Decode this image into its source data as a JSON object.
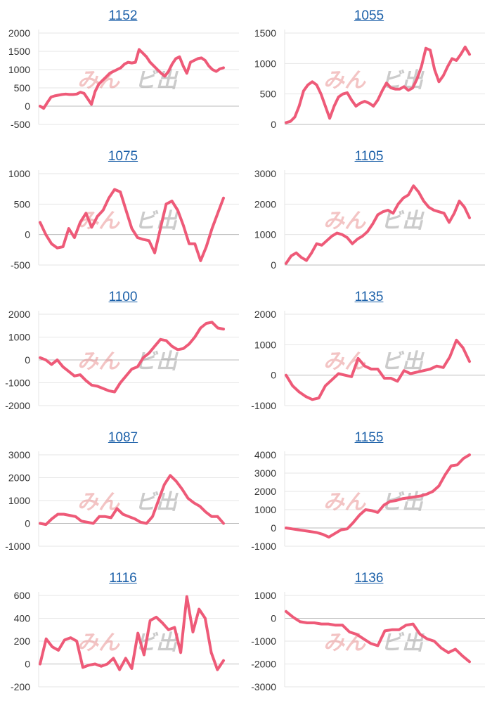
{
  "colors": {
    "line": "#ee5a78",
    "grid": "#e6e6e6",
    "zero": "#bbbbbb",
    "watermark": "#e88a8a",
    "title": "#1a5fa8"
  },
  "watermark": {
    "left": "みん",
    "right": "ビ出"
  },
  "chart_data": [
    {
      "type": "line",
      "title": "1152",
      "ylim": [
        -500,
        2000
      ],
      "yticks": [
        2000,
        1500,
        1000,
        500,
        0,
        -500
      ],
      "values": [
        0,
        -60,
        100,
        250,
        280,
        300,
        320,
        330,
        320,
        320,
        330,
        380,
        350,
        200,
        50,
        400,
        600,
        700,
        800,
        900,
        950,
        1000,
        1050,
        1150,
        1200,
        1180,
        1200,
        1550,
        1450,
        1350,
        1200,
        1100,
        1000,
        900,
        820,
        950,
        1150,
        1300,
        1350,
        1100,
        900,
        1200,
        1250,
        1300,
        1320,
        1250,
        1100,
        1000,
        950,
        1020,
        1050
      ]
    },
    {
      "type": "line",
      "title": "1055",
      "ylim": [
        0,
        1500
      ],
      "yticks": [
        1500,
        1000,
        500,
        0
      ],
      "values": [
        30,
        50,
        120,
        300,
        550,
        650,
        700,
        650,
        500,
        300,
        100,
        300,
        450,
        500,
        520,
        400,
        300,
        350,
        380,
        350,
        300,
        400,
        550,
        680,
        600,
        580,
        580,
        620,
        560,
        600,
        750,
        950,
        1250,
        1220,
        900,
        700,
        800,
        950,
        1080,
        1050,
        1150,
        1270,
        1150
      ]
    },
    {
      "type": "line",
      "title": "1075",
      "ylim": [
        -500,
        1000
      ],
      "yticks": [
        1000,
        500,
        0,
        -500
      ],
      "values": [
        200,
        0,
        -150,
        -220,
        -200,
        100,
        -50,
        200,
        350,
        120,
        300,
        400,
        600,
        740,
        700,
        400,
        100,
        -50,
        -80,
        -100,
        -300,
        100,
        500,
        550,
        400,
        150,
        -150,
        -150,
        -430,
        -200,
        100,
        350,
        600
      ]
    },
    {
      "type": "line",
      "title": "1105",
      "ylim": [
        0,
        3000
      ],
      "yticks": [
        3000,
        2000,
        1000,
        0
      ],
      "values": [
        50,
        300,
        400,
        250,
        150,
        400,
        700,
        650,
        800,
        950,
        1050,
        1000,
        900,
        700,
        850,
        950,
        1100,
        1350,
        1650,
        1750,
        1800,
        1700,
        2000,
        2200,
        2300,
        2600,
        2400,
        2100,
        1900,
        1800,
        1750,
        1700,
        1400,
        1700,
        2100,
        1900,
        1550
      ]
    },
    {
      "type": "line",
      "title": "1100",
      "ylim": [
        -2000,
        2000
      ],
      "yticks": [
        2000,
        1000,
        0,
        -1000,
        -2000
      ],
      "values": [
        100,
        0,
        -200,
        0,
        -300,
        -500,
        -700,
        -650,
        -900,
        -1100,
        -1150,
        -1250,
        -1350,
        -1400,
        -1000,
        -700,
        -400,
        -300,
        100,
        300,
        600,
        900,
        850,
        600,
        450,
        500,
        700,
        1000,
        1400,
        1600,
        1650,
        1400,
        1350
      ]
    },
    {
      "type": "line",
      "title": "1135",
      "ylim": [
        -1000,
        2000
      ],
      "yticks": [
        2000,
        1000,
        0,
        -1000
      ],
      "values": [
        0,
        -350,
        -550,
        -700,
        -800,
        -750,
        -350,
        -150,
        50,
        0,
        -50,
        550,
        300,
        200,
        200,
        -100,
        -100,
        -200,
        150,
        50,
        100,
        150,
        200,
        300,
        250,
        600,
        1150,
        900,
        450
      ]
    },
    {
      "type": "line",
      "title": "1087",
      "ylim": [
        -1000,
        3000
      ],
      "yticks": [
        3000,
        2000,
        1000,
        0,
        -1000
      ],
      "values": [
        0,
        -50,
        200,
        400,
        400,
        350,
        300,
        100,
        50,
        0,
        300,
        300,
        250,
        650,
        400,
        300,
        200,
        50,
        0,
        300,
        1000,
        1700,
        2100,
        1850,
        1500,
        1100,
        900,
        750,
        500,
        300,
        300,
        0
      ]
    },
    {
      "type": "line",
      "title": "1155",
      "ylim": [
        -1000,
        4000
      ],
      "yticks": [
        4000,
        3000,
        2000,
        1000,
        0,
        -1000
      ],
      "values": [
        0,
        -50,
        -100,
        -150,
        -200,
        -250,
        -350,
        -500,
        -300,
        -100,
        -50,
        300,
        700,
        1000,
        950,
        850,
        1250,
        1450,
        1500,
        1600,
        1650,
        1700,
        1750,
        1850,
        2000,
        2300,
        2900,
        3400,
        3450,
        3800,
        4000
      ]
    },
    {
      "type": "line",
      "title": "1116",
      "ylim": [
        -200,
        600
      ],
      "yticks": [
        600,
        400,
        200,
        0,
        -200
      ],
      "values": [
        0,
        220,
        150,
        120,
        210,
        230,
        200,
        -30,
        -10,
        0,
        -20,
        0,
        50,
        -50,
        50,
        -40,
        270,
        80,
        380,
        410,
        360,
        300,
        320,
        100,
        590,
        280,
        480,
        400,
        100,
        -50,
        30
      ]
    },
    {
      "type": "line",
      "title": "1136",
      "ylim": [
        -3000,
        1000
      ],
      "yticks": [
        1000,
        0,
        -1000,
        -2000,
        -3000
      ],
      "values": [
        300,
        50,
        -150,
        -200,
        -200,
        -250,
        -250,
        -300,
        -300,
        -600,
        -700,
        -900,
        -1100,
        -1200,
        -550,
        -500,
        -500,
        -300,
        -250,
        -700,
        -900,
        -1000,
        -1300,
        -1500,
        -1350,
        -1650,
        -1900
      ]
    }
  ]
}
